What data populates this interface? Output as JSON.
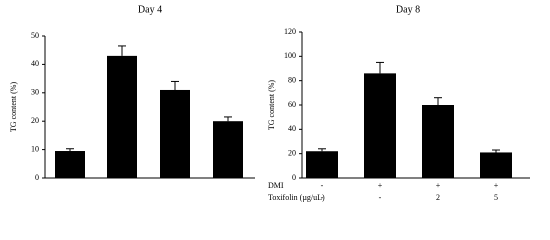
{
  "chart_data": [
    {
      "type": "bar",
      "title": "Day 4",
      "y_label": "TG content (%)",
      "values": [
        9.5,
        43,
        31,
        20
      ],
      "errors": [
        0.8,
        3.5,
        3,
        1.5
      ],
      "color": "#000000",
      "ylim": [
        0,
        50
      ],
      "yticks": [
        0,
        10,
        20,
        30,
        40,
        50
      ]
    },
    {
      "type": "bar",
      "title": "Day 8",
      "y_label": "TG content (%)",
      "values": [
        22,
        86,
        60,
        21
      ],
      "errors": [
        2,
        9,
        6,
        2
      ],
      "color": "#000000",
      "ylim": [
        0,
        120
      ],
      "yticks": [
        0,
        20,
        40,
        60,
        80,
        100,
        120
      ],
      "table": [
        {
          "label": "DMI",
          "values": [
            "-",
            "+",
            "+",
            "+"
          ]
        },
        {
          "label": "Toxifolin (µg/uL)",
          "values": [
            "-",
            "-",
            "2",
            "5"
          ]
        }
      ]
    }
  ]
}
